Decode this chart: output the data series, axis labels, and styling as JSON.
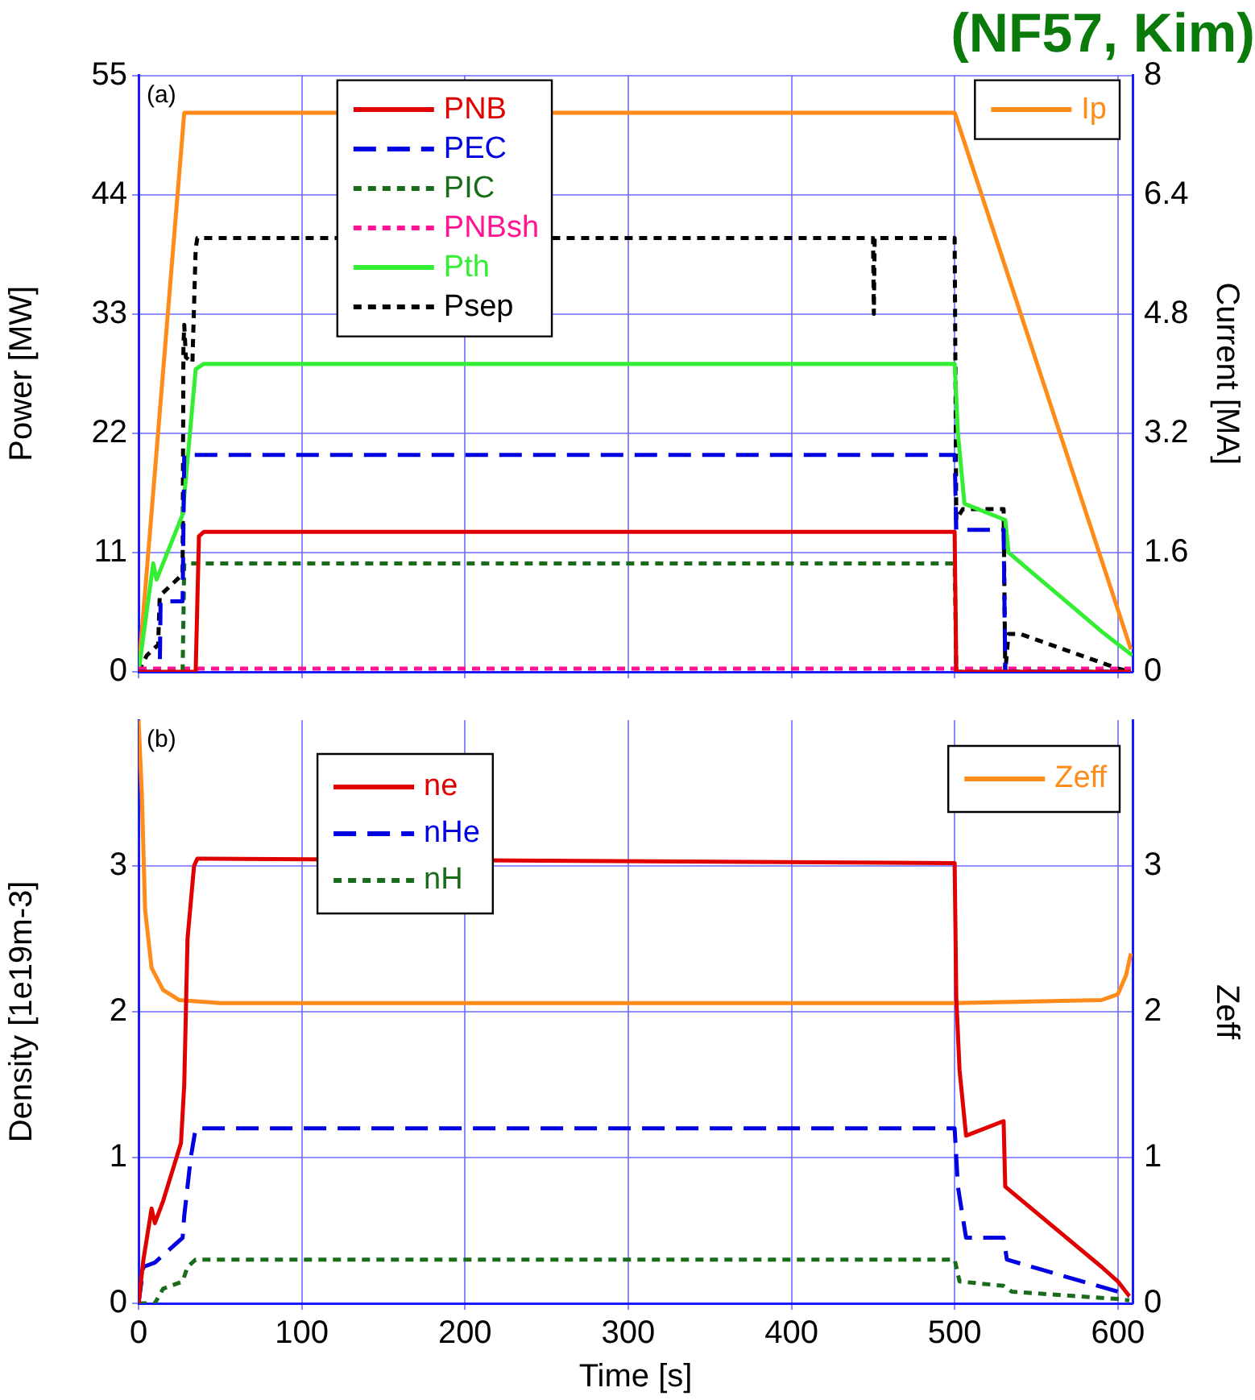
{
  "chart_data": [
    {
      "type": "line",
      "title": "(NF57, Kim)",
      "ylabel": "Power [MW]",
      "y2label": "Current [MA]",
      "annotations": [
        "(a)"
      ],
      "xlim": [
        0,
        609
      ],
      "xticks": [
        0,
        100,
        200,
        300,
        400,
        500,
        600
      ],
      "ylim": [
        0,
        55
      ],
      "yticks": [
        0,
        11,
        22,
        33,
        44,
        55
      ],
      "y2lim": [
        0,
        8
      ],
      "y2ticks": [
        0,
        1.6,
        3.2,
        4.8,
        6.4,
        8
      ],
      "tick_labels": "y",
      "grid": true,
      "legend": "top",
      "marker": "none",
      "series": [
        {
          "name": "PNB",
          "color": "#e00000",
          "line_style": "solid",
          "x": [
            0,
            35,
            37,
            40,
            500,
            501,
            608
          ],
          "values": [
            0,
            0,
            12.5,
            12.9,
            12.9,
            0,
            0
          ]
        },
        {
          "name": "PEC",
          "color": "#0000e0",
          "line_style": "dashed",
          "x": [
            0,
            13,
            13.5,
            27,
            28,
            500,
            501,
            530,
            531,
            608
          ],
          "values": [
            0,
            0,
            6.5,
            6.5,
            20,
            20,
            13.1,
            13.1,
            0,
            0
          ]
        },
        {
          "name": "PIC",
          "color": "#1a6b1a",
          "line_style": "dotted",
          "x": [
            0,
            27,
            28,
            500,
            501,
            608
          ],
          "values": [
            0,
            0,
            10,
            10,
            0,
            0
          ]
        },
        {
          "name": "PNBsh",
          "color": "#ff1493",
          "line_style": "dotted",
          "x": [
            0,
            608
          ],
          "values": [
            0.3,
            0.3
          ]
        },
        {
          "name": "Pth",
          "color": "#33ee33",
          "line_style": "solid",
          "x": [
            0,
            9,
            11,
            27,
            35,
            40,
            500,
            502,
            506,
            531,
            533,
            591,
            609
          ],
          "values": [
            0,
            10,
            8.5,
            14.5,
            27.9,
            28.4,
            28.4,
            22,
            15.5,
            14,
            11,
            3.6,
            1.5
          ]
        },
        {
          "name": "Psep",
          "color": "#000000",
          "line_style": "dotted",
          "x": [
            0,
            5,
            12,
            13,
            20,
            27,
            27.5,
            28,
            29,
            33,
            35,
            36,
            450,
            450.5,
            451,
            500,
            501,
            505,
            530,
            531,
            533,
            540,
            600,
            608
          ],
          "values": [
            0,
            1.5,
            2.5,
            7,
            8,
            9,
            30,
            32,
            29,
            28.5,
            39,
            40,
            40,
            33,
            40,
            40,
            14,
            15,
            15,
            0,
            3.5,
            3.5,
            0.3,
            0
          ]
        },
        {
          "name": "Ip",
          "color": "#ff8c1a",
          "line_style": "solid",
          "axis": "y2",
          "x": [
            0,
            28,
            500,
            608
          ],
          "values": [
            0,
            7.5,
            7.5,
            0.3
          ]
        }
      ]
    },
    {
      "type": "line",
      "xlabel": "Time [s]",
      "ylabel": "Density [1e19m-3]",
      "y2label": "Zeff",
      "annotations": [
        "(b)"
      ],
      "xlim": [
        0,
        609
      ],
      "xticks": [
        0,
        100,
        200,
        300,
        400,
        500,
        600
      ],
      "ylim": [
        0,
        4
      ],
      "yticks": [
        0,
        1,
        2,
        3
      ],
      "y2lim": [
        0,
        4
      ],
      "y2ticks": [
        0,
        1,
        2,
        3
      ],
      "grid": true,
      "legend": "top",
      "marker": "none",
      "series": [
        {
          "name": "ne",
          "color": "#e00000",
          "line_style": "solid",
          "x": [
            0,
            3,
            8,
            10,
            15,
            26,
            28,
            30,
            34,
            36,
            500,
            501,
            503,
            507,
            530,
            531,
            590,
            600,
            607
          ],
          "values": [
            0,
            0.3,
            0.65,
            0.55,
            0.7,
            1.1,
            1.5,
            2.5,
            3,
            3.05,
            3.02,
            2.1,
            1.6,
            1.15,
            1.25,
            0.8,
            0.25,
            0.15,
            0.05
          ]
        },
        {
          "name": "nHe",
          "color": "#0000e0",
          "line_style": "dashed",
          "x": [
            0,
            3,
            10,
            27,
            28,
            32,
            35,
            500,
            502,
            507,
            530,
            532,
            600,
            607
          ],
          "values": [
            0,
            0.25,
            0.28,
            0.45,
            0.6,
            1,
            1.2,
            1.2,
            0.8,
            0.45,
            0.45,
            0.3,
            0.08,
            0.05
          ]
        },
        {
          "name": "nH",
          "color": "#1a6b1a",
          "line_style": "dotted",
          "x": [
            0,
            10,
            15,
            27,
            30,
            35,
            500,
            503,
            530,
            535,
            600,
            607
          ],
          "values": [
            0,
            0,
            0.1,
            0.15,
            0.25,
            0.3,
            0.3,
            0.15,
            0.12,
            0.08,
            0.03,
            0.02
          ]
        },
        {
          "name": "Zeff",
          "color": "#ff8c1a",
          "line_style": "solid",
          "axis": "y2",
          "x": [
            0,
            2,
            4,
            8,
            15,
            25,
            50,
            500,
            590,
            600,
            605,
            608
          ],
          "values": [
            4,
            3.5,
            2.7,
            2.3,
            2.15,
            2.08,
            2.06,
            2.06,
            2.08,
            2.12,
            2.25,
            2.4
          ]
        }
      ]
    }
  ]
}
